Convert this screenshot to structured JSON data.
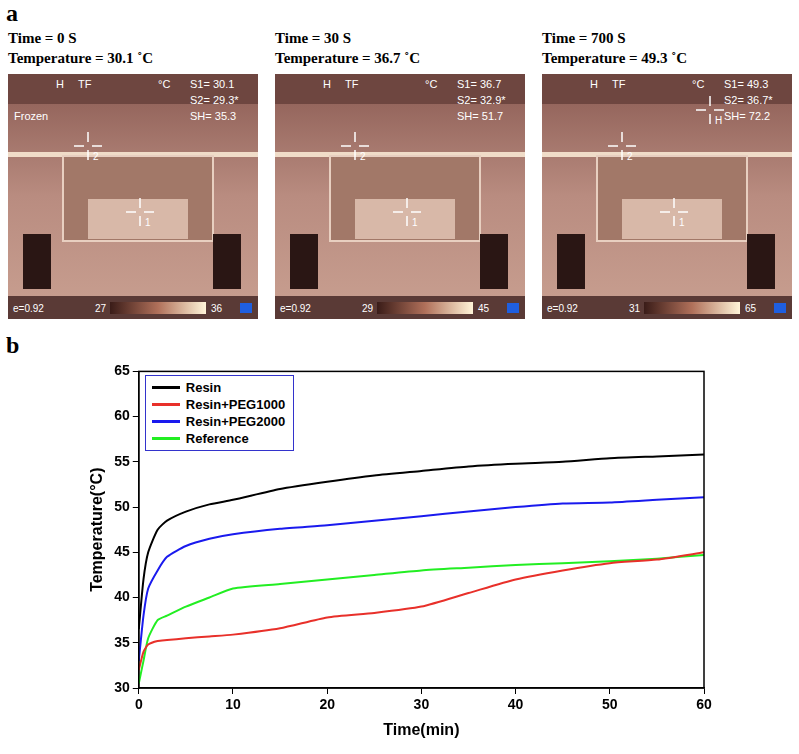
{
  "panel_a": {
    "panel_label": "a",
    "frames": [
      {
        "time": "Time = 0 S",
        "temperature": "Temperature =  30.1 ˚C",
        "header_marks": [
          "H",
          "TF",
          "°C"
        ],
        "status": "Frozen",
        "readouts": [
          "S1= 30.1",
          "S2= 29.3*",
          "SH= 35.3"
        ],
        "emissivity": "e=0.92",
        "scale": [
          27,
          36
        ],
        "markers": [
          "2",
          "1"
        ]
      },
      {
        "time": "Time = 30 S",
        "temperature": "Temperature =  36.7 ˚C",
        "header_marks": [
          "H",
          "TF",
          "°C"
        ],
        "readouts": [
          "S1= 36.7",
          "S2= 32.9*",
          "SH= 51.7"
        ],
        "emissivity": "e=0.92",
        "scale": [
          29,
          45
        ],
        "markers": [
          "2",
          "1"
        ]
      },
      {
        "time": "Time = 700 S",
        "temperature": "Temperature = 49.3 ˚C",
        "header_marks": [
          "H",
          "TF",
          "°C"
        ],
        "readouts": [
          "S1= 49.3",
          "S2= 36.7*",
          "SH= 72.2"
        ],
        "emissivity": "e=0.92",
        "scale": [
          31,
          65
        ],
        "markers": [
          "2",
          "1",
          "H"
        ]
      }
    ]
  },
  "chart_data": {
    "panel_label": "b",
    "type": "line",
    "x_label": "Time(min)",
    "y_label": "Temperature(°C)",
    "x": [
      0,
      0.5,
      1,
      2,
      3,
      5,
      7.5,
      10,
      15,
      20,
      25,
      30,
      35,
      40,
      45,
      50,
      55,
      60
    ],
    "series": [
      {
        "name": "Resin",
        "color": "#000000",
        "values": [
          36.5,
          42,
          45,
          47.5,
          48.5,
          49.5,
          50.3,
          50.8,
          52,
          52.8,
          53.5,
          54,
          54.5,
          54.8,
          55,
          55.4,
          55.6,
          55.8
        ]
      },
      {
        "name": "Resin+PEG1000",
        "color": "#e8302a",
        "values": [
          32,
          34,
          34.8,
          35.2,
          35.3,
          35.5,
          35.7,
          35.9,
          36.6,
          37.8,
          38.3,
          39,
          40.5,
          42,
          43,
          43.8,
          44.2,
          45
        ]
      },
      {
        "name": "Resin+PEG2000",
        "color": "#1a1aee",
        "values": [
          33,
          38,
          41,
          43,
          44.5,
          45.7,
          46.5,
          47,
          47.6,
          48,
          48.5,
          49,
          49.5,
          50,
          50.4,
          50.5,
          50.8,
          51.1
        ]
      },
      {
        "name": "Reference",
        "color": "#22ee22",
        "values": [
          30.5,
          33,
          35.5,
          37.5,
          38,
          39,
          40,
          41,
          41.5,
          42,
          42.5,
          43,
          43.3,
          43.6,
          43.8,
          44,
          44.3,
          44.7
        ]
      }
    ],
    "xlim": [
      0,
      60
    ],
    "xticks": [
      0,
      10,
      20,
      30,
      40,
      50,
      60
    ],
    "ylim": [
      30,
      65
    ],
    "yticks": [
      30,
      35,
      40,
      45,
      50,
      55,
      60,
      65
    ],
    "grid": false,
    "legend": "upper left"
  }
}
